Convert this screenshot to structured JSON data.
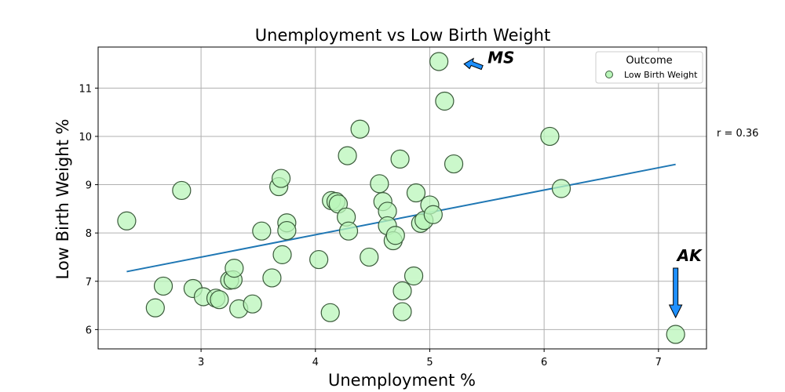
{
  "chart_data": {
    "type": "scatter",
    "title": "Unemployment vs Low Birth Weight",
    "xlabel": "Unemployment %",
    "ylabel": "Low Birth Weight %",
    "xlim": [
      2.1,
      7.42
    ],
    "ylim": [
      5.6,
      11.85
    ],
    "xticks": [
      3,
      4,
      5,
      6,
      7
    ],
    "yticks": [
      6,
      7,
      8,
      9,
      10,
      11
    ],
    "grid": true,
    "legend": {
      "title": "Outcome",
      "placement": "top-right",
      "entries": [
        "Low Birth Weight"
      ]
    },
    "series": [
      {
        "name": "Low Birth Weight",
        "color": "#b9f5b9",
        "edge_color": "#3a5a3a",
        "points": [
          [
            2.35,
            8.25
          ],
          [
            2.6,
            6.45
          ],
          [
            2.67,
            6.9
          ],
          [
            2.83,
            8.88
          ],
          [
            2.93,
            6.85
          ],
          [
            3.02,
            6.68
          ],
          [
            3.13,
            6.65
          ],
          [
            3.16,
            6.62
          ],
          [
            3.25,
            7.02
          ],
          [
            3.28,
            7.03
          ],
          [
            3.29,
            7.27
          ],
          [
            3.33,
            6.43
          ],
          [
            3.45,
            6.53
          ],
          [
            3.53,
            8.04
          ],
          [
            3.62,
            7.07
          ],
          [
            3.68,
            8.96
          ],
          [
            3.7,
            9.13
          ],
          [
            3.71,
            7.55
          ],
          [
            3.75,
            8.21
          ],
          [
            3.75,
            8.05
          ],
          [
            4.03,
            7.45
          ],
          [
            4.13,
            6.35
          ],
          [
            4.14,
            8.67
          ],
          [
            4.18,
            8.65
          ],
          [
            4.2,
            8.6
          ],
          [
            4.27,
            8.33
          ],
          [
            4.28,
            9.6
          ],
          [
            4.29,
            8.04
          ],
          [
            4.39,
            10.15
          ],
          [
            4.47,
            7.5
          ],
          [
            4.56,
            9.02
          ],
          [
            4.59,
            8.65
          ],
          [
            4.63,
            8.45
          ],
          [
            4.63,
            8.15
          ],
          [
            4.68,
            7.84
          ],
          [
            4.7,
            7.95
          ],
          [
            4.74,
            9.53
          ],
          [
            4.76,
            6.8
          ],
          [
            4.76,
            6.37
          ],
          [
            4.86,
            7.11
          ],
          [
            4.88,
            8.83
          ],
          [
            4.92,
            8.2
          ],
          [
            4.95,
            8.26
          ],
          [
            5.0,
            8.58
          ],
          [
            5.03,
            8.38
          ],
          [
            5.08,
            11.55
          ],
          [
            5.13,
            10.73
          ],
          [
            5.21,
            9.43
          ],
          [
            6.05,
            10.0
          ],
          [
            6.15,
            8.92
          ],
          [
            7.15,
            5.9
          ]
        ]
      }
    ],
    "trendline": {
      "color": "#1f77b4",
      "x": [
        2.35,
        7.15
      ],
      "y": [
        7.2,
        9.42
      ]
    },
    "annotations": [
      {
        "text": "MS",
        "arrow_to": [
          5.3,
          11.5
        ]
      },
      {
        "text": "AK",
        "arrow_to": [
          7.15,
          6.25
        ]
      }
    ],
    "correlation_text": "r = 0.36"
  }
}
